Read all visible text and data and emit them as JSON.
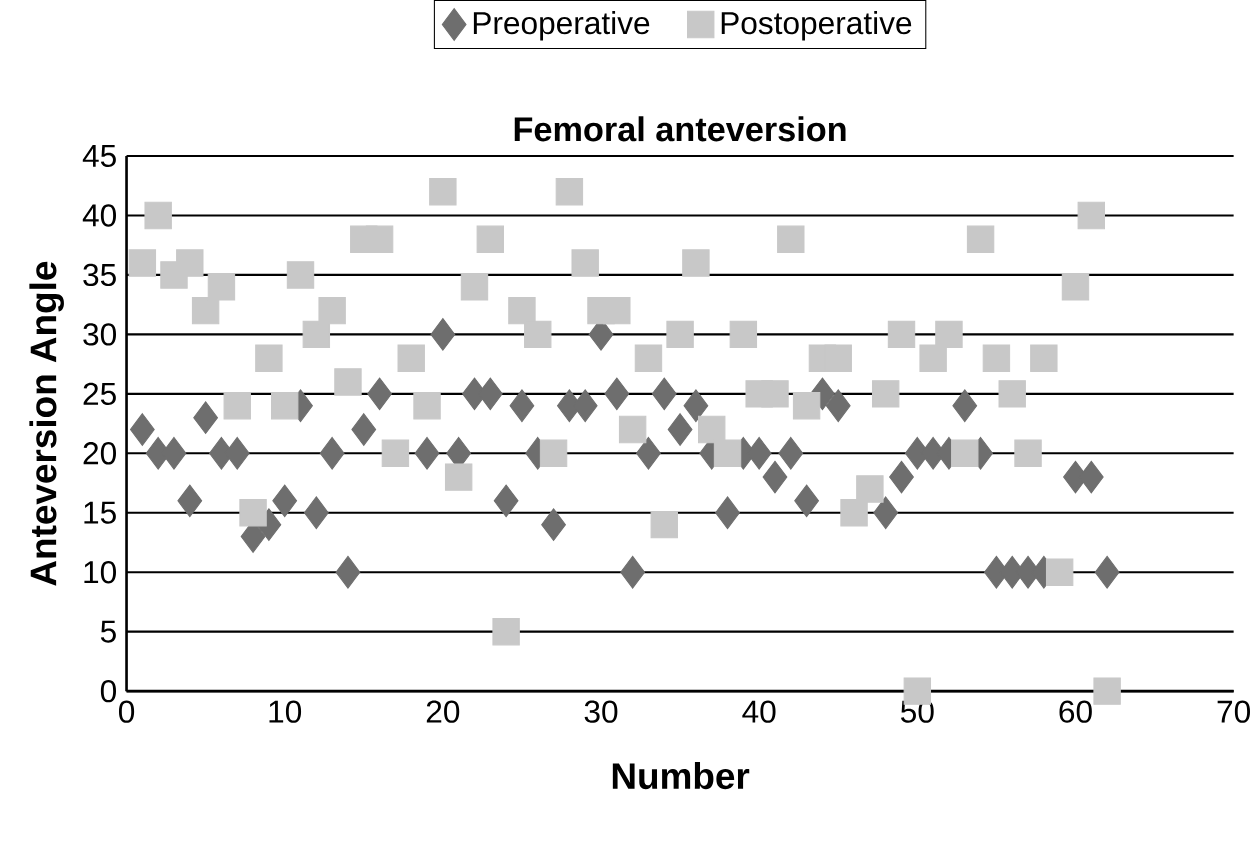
{
  "chart_data": {
    "type": "scatter",
    "title": "Femoral anteversion",
    "xlabel": "Number",
    "ylabel": "Anteversion Angle",
    "xlim": [
      0,
      70
    ],
    "xticks": [
      0,
      10,
      20,
      30,
      40,
      50,
      60,
      70
    ],
    "ylim": [
      0,
      45
    ],
    "yticks": [
      0,
      5,
      10,
      15,
      20,
      25,
      30,
      35,
      40,
      45
    ],
    "grid": "y",
    "legend": "top",
    "series": [
      {
        "name": "Preoperative",
        "color": "#6e6e6e",
        "marker": "diamond",
        "x": [
          1,
          2,
          3,
          4,
          5,
          6,
          7,
          8,
          9,
          10,
          11,
          12,
          13,
          14,
          15,
          16,
          19,
          20,
          21,
          22,
          23,
          24,
          25,
          26,
          27,
          28,
          29,
          30,
          31,
          32,
          33,
          34,
          35,
          36,
          37,
          38,
          39,
          40,
          41,
          42,
          43,
          44,
          45,
          47,
          48,
          49,
          50,
          51,
          52,
          53,
          54,
          55,
          56,
          57,
          58,
          60,
          61,
          62
        ],
        "values": [
          22,
          20,
          20,
          16,
          23,
          20,
          20,
          13,
          14,
          16,
          24,
          15,
          20,
          10,
          22,
          25,
          20,
          30,
          20,
          25,
          25,
          16,
          24,
          20,
          14,
          24,
          24,
          30,
          25,
          10,
          20,
          25,
          22,
          24,
          20,
          15,
          20,
          20,
          18,
          20,
          16,
          25,
          24,
          null,
          15,
          18,
          20,
          20,
          20,
          24,
          20,
          10,
          10,
          10,
          10,
          18,
          18,
          10
        ]
      },
      {
        "name": "Postoperative",
        "color": "#c8c8c8",
        "marker": "square",
        "x": [
          1,
          2,
          3,
          4,
          5,
          6,
          7,
          8,
          9,
          10,
          11,
          12,
          13,
          14,
          15,
          16,
          17,
          18,
          19,
          20,
          21,
          22,
          23,
          24,
          25,
          26,
          27,
          28,
          29,
          30,
          31,
          32,
          33,
          34,
          35,
          36,
          37,
          38,
          39,
          40,
          41,
          42,
          43,
          44,
          45,
          46,
          47,
          48,
          49,
          50,
          51,
          52,
          53,
          54,
          55,
          56,
          57,
          58,
          59,
          60,
          61,
          62
        ],
        "values": [
          36,
          40,
          35,
          36,
          32,
          34,
          24,
          15,
          28,
          24,
          35,
          30,
          32,
          26,
          38,
          38,
          20,
          28,
          24,
          42,
          18,
          34,
          38,
          5,
          32,
          30,
          20,
          42,
          36,
          32,
          32,
          22,
          28,
          14,
          30,
          36,
          22,
          20,
          30,
          25,
          25,
          38,
          24,
          28,
          28,
          15,
          17,
          25,
          30,
          0,
          28,
          30,
          20,
          38,
          28,
          25,
          20,
          28,
          10,
          34,
          40,
          0
        ]
      }
    ]
  }
}
